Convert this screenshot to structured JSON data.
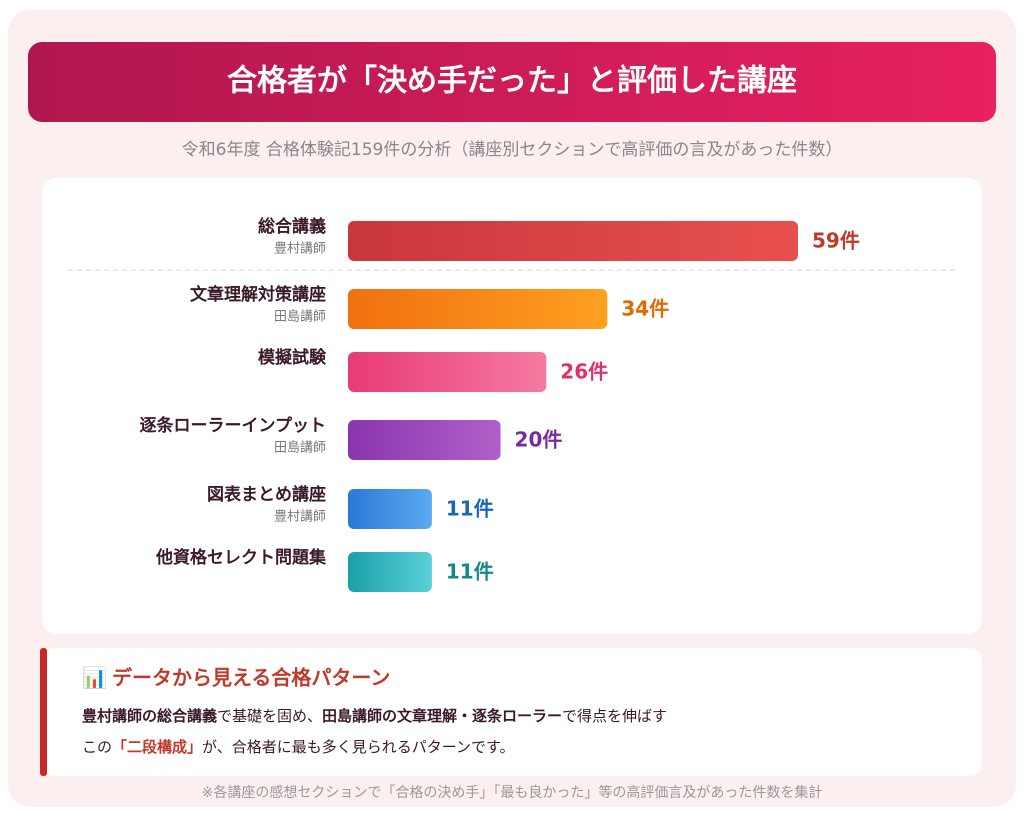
{
  "chart_data": {
    "type": "barh",
    "title": "合格者が「決め手だった」と評価した講座",
    "subtitle": "令和6年度 合格体験記159件の分析（講座別セクションで高評価の言及があった件数）",
    "categories": [
      "総合講義",
      "文章理解対策講座",
      "模擬試験",
      "逐条ローラーインプット",
      "図表まとめ講座",
      "他資格セレクト問題集"
    ],
    "sublabels": [
      "豊村講師",
      "田島講師",
      null,
      "田島講師",
      "豊村講師",
      null
    ],
    "values": [
      59,
      34,
      26,
      20,
      11,
      11
    ],
    "value_labels": [
      "59件",
      "34件",
      "26件",
      "20件",
      "11件",
      "11件"
    ],
    "colors": [
      [
        "#c8373c",
        "#e8504f"
      ],
      [
        "#f07010",
        "#ffa020"
      ],
      [
        "#e83a78",
        "#f57aa0"
      ],
      [
        "#8a35b0",
        "#b060c8"
      ],
      [
        "#2a78d8",
        "#5aaaf0"
      ],
      [
        "#1aa0a8",
        "#5ad0d8"
      ]
    ],
    "label_colors": [
      "#c0392b",
      "#e06a00",
      "#e0306a",
      "#7a2a9e",
      "#1a66b8",
      "#138a8a"
    ]
  },
  "insight": {
    "icon": "📊",
    "title": "データから見える合格パターン",
    "line1": [
      "豊村講師の総合講義",
      "で基礎を固め、",
      "田島講師の文章理解・逐条ローラー",
      "で得点を伸ばす"
    ],
    "line2": [
      "この",
      "「二段構成」",
      "が、合格者に最も多く見られるパターンです。"
    ]
  },
  "footnote": "※各講座の感想セクションで「合格の決め手」「最も良かった」等の高評価言及があった件数を集計"
}
